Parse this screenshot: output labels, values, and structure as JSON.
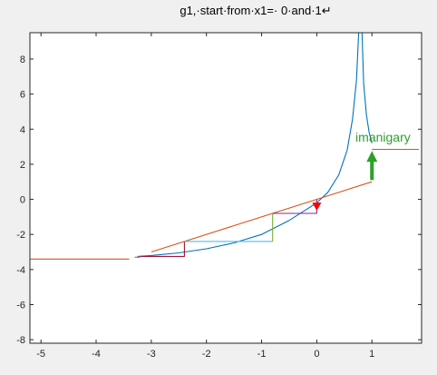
{
  "chart_data": {
    "type": "line",
    "title": "g1,·start·from·x1=· 0·and·1↵",
    "xlabel": "",
    "ylabel": "",
    "xlim": [
      -5.2,
      1.9
    ],
    "ylim": [
      -8.2,
      9.5
    ],
    "xticks": [
      -5,
      -4,
      -3,
      -2,
      -1,
      0,
      1
    ],
    "yticks": [
      -8,
      -6,
      -4,
      -2,
      0,
      2,
      4,
      6,
      8
    ],
    "grid": false,
    "legend": "none",
    "colors": {
      "curve": "#0072bd",
      "line": "#d95319",
      "cobweb_red": "#a2142f",
      "cobweb_cyan": "#4dbeee",
      "cobweb_olive": "#77ac30",
      "cobweb_purple": "#7e2f8e",
      "arrow_red": "#ff0000",
      "arrow_green": "#2ca02c"
    },
    "series": [
      {
        "x": [
          -3.25,
          -3.0,
          -2.5,
          -2.0,
          -1.5,
          -1.0,
          -0.5,
          -0.2,
          0.0,
          0.2,
          0.4,
          0.55,
          0.65,
          0.72,
          0.76
        ],
        "y": [
          -3.25,
          -3.2,
          -3.05,
          -2.82,
          -2.48,
          -2.0,
          -1.2,
          -0.6,
          -0.2,
          0.4,
          1.4,
          2.8,
          4.6,
          6.8,
          9.5
        ]
      },
      {
        "x": [
          0.82,
          0.85,
          0.9,
          0.95,
          1.0
        ],
        "y": [
          9.5,
          6.6,
          4.8,
          3.8,
          3.2
        ]
      },
      {
        "x": [
          -3.0,
          1.0
        ],
        "y": [
          -3.0,
          1.0
        ]
      },
      {
        "x": [
          -5.2,
          -3.4
        ],
        "y": [
          -3.4,
          -3.4
        ]
      },
      {
        "x": [
          -3.3,
          -3.2
        ],
        "y": [
          -3.3,
          -3.3
        ]
      },
      {
        "x": [
          1.0,
          1.85
        ],
        "y": [
          2.85,
          2.85
        ]
      },
      {
        "x": [
          -3.2,
          -2.4,
          -2.4
        ],
        "y": [
          -3.25,
          -3.25,
          -2.4
        ]
      },
      {
        "x": [
          -2.4,
          -0.8
        ],
        "y": [
          -2.4,
          -2.4
        ]
      },
      {
        "x": [
          -0.8,
          -0.8
        ],
        "y": [
          -2.4,
          -0.8
        ]
      },
      {
        "x": [
          -0.8,
          0.0,
          0.0
        ],
        "y": [
          -0.8,
          -0.8,
          0.0
        ]
      }
    ],
    "annotations": [
      {
        "text": "imanigary",
        "x": 1.2,
        "y": 3.3
      },
      {
        "x": 0.0,
        "y": -0.6
      },
      {
        "x": 1.0,
        "y": 1.1
      }
    ]
  }
}
